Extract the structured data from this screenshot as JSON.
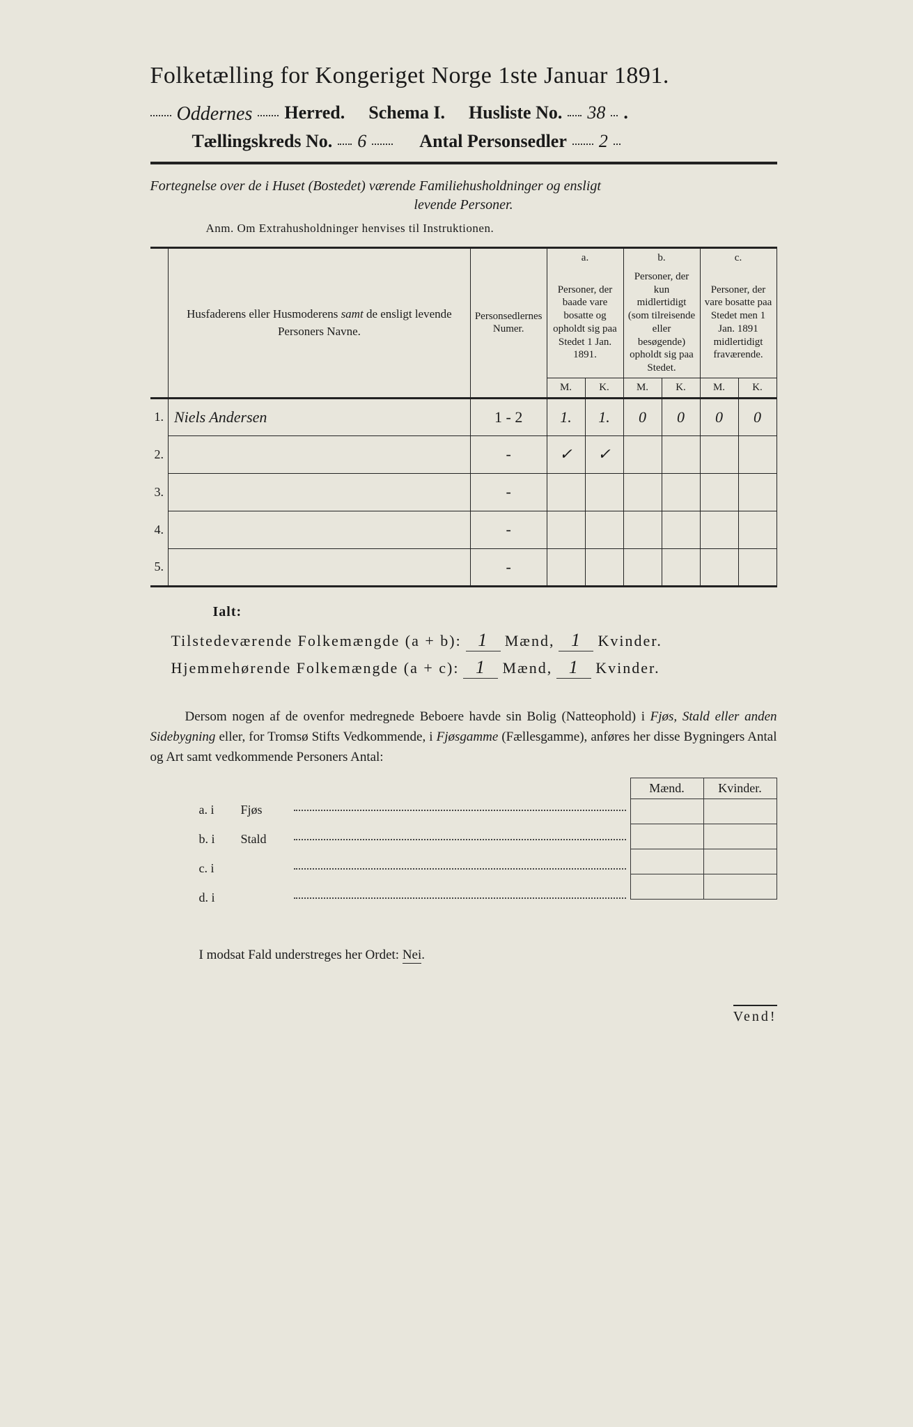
{
  "colors": {
    "paper": "#e8e6dc",
    "ink": "#1a1a1a",
    "rule": "#222222"
  },
  "header": {
    "title": "Folketælling for Kongeriget Norge 1ste Januar 1891.",
    "herred_label": "Herred.",
    "herred_value": "Oddernes",
    "schema_label": "Schema I.",
    "husliste_label": "Husliste No.",
    "husliste_value": "38",
    "kreds_label": "Tællingskreds No.",
    "kreds_value": "6",
    "personsedler_label": "Antal Personsedler",
    "personsedler_value": "2"
  },
  "intro": {
    "line1": "Fortegnelse over de i Huset (Bostedet) værende Familiehusholdninger og ensligt",
    "line2": "levende Personer.",
    "anm": "Anm.  Om Extrahusholdninger henvises til Instruktionen."
  },
  "table": {
    "col_name": "Husfaderens eller Husmoderens samt de ensligt levende Personers Navne.",
    "col_num": "Personsedlernes Numer.",
    "col_a_tag": "a.",
    "col_a": "Personer, der baade vare bosatte og opholdt sig paa Stedet 1 Jan. 1891.",
    "col_b_tag": "b.",
    "col_b": "Personer, der kun midlertidigt (som tilreisende eller besøgende) opholdt sig paa Stedet.",
    "col_c_tag": "c.",
    "col_c": "Personer, der vare bosatte paa Stedet men 1 Jan. 1891 midlertidigt fraværende.",
    "m": "M.",
    "k": "K.",
    "rows": [
      {
        "n": "1.",
        "name": "Niels Andersen",
        "num": "1 - 2",
        "a_m": "1.",
        "a_k": "1.",
        "b_m": "0",
        "b_k": "0",
        "c_m": "0",
        "c_k": "0"
      },
      {
        "n": "2.",
        "name": "",
        "num": "-",
        "a_m": "✓",
        "a_k": "✓",
        "b_m": "",
        "b_k": "",
        "c_m": "",
        "c_k": ""
      },
      {
        "n": "3.",
        "name": "",
        "num": "-",
        "a_m": "",
        "a_k": "",
        "b_m": "",
        "b_k": "",
        "c_m": "",
        "c_k": ""
      },
      {
        "n": "4.",
        "name": "",
        "num": "-",
        "a_m": "",
        "a_k": "",
        "b_m": "",
        "b_k": "",
        "c_m": "",
        "c_k": ""
      },
      {
        "n": "5.",
        "name": "",
        "num": "-",
        "a_m": "",
        "a_k": "",
        "b_m": "",
        "b_k": "",
        "c_m": "",
        "c_k": ""
      }
    ]
  },
  "totals": {
    "ialt": "Ialt:",
    "line1_label": "Tilstedeværende Folkemængde (a + b):",
    "line2_label": "Hjemmehørende Folkemængde (a + c):",
    "maend": "Mænd,",
    "kvinder": "Kvinder.",
    "val1_m": "1",
    "val1_k": "1",
    "val2_m": "1",
    "val2_k": "1"
  },
  "paragraph": "Dersom nogen af de ovenfor medregnede Beboere havde sin Bolig (Natteophold) i Fjøs, Stald eller anden Sidebygning eller, for Tromsø Stifts Vedkommende, i Fjøsgamme (Fællesgamme), anføres her disse Bygningers Antal og Art samt vedkommende Personers Antal:",
  "sidebuildings": {
    "head_m": "Mænd.",
    "head_k": "Kvinder.",
    "rows": [
      {
        "tag": "a.  i",
        "label": "Fjøs"
      },
      {
        "tag": "b.  i",
        "label": "Stald"
      },
      {
        "tag": "c.  i",
        "label": ""
      },
      {
        "tag": "d.  i",
        "label": ""
      }
    ]
  },
  "neiline_pre": "I modsat Fald understreges her Ordet: ",
  "neiline_word": "Nei",
  "vend": "Vend!"
}
